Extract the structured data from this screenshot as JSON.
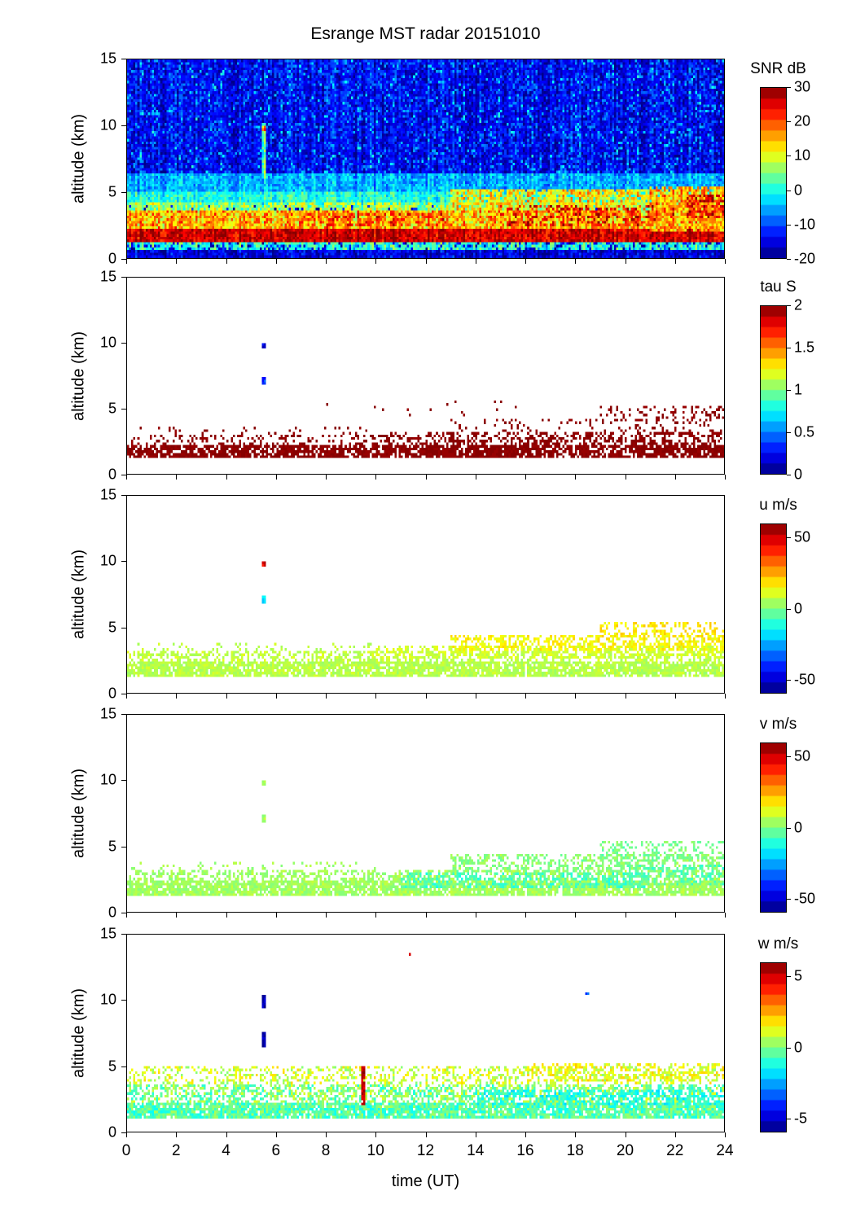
{
  "title": "Esrange MST radar 20151010",
  "axes": {
    "xlabel": "time (UT)",
    "ylabel": "altitude (km)",
    "x_range": [
      0,
      24
    ],
    "y_range": [
      0,
      15
    ],
    "x_ticks": [
      0,
      2,
      4,
      6,
      8,
      10,
      12,
      14,
      16,
      18,
      20,
      22,
      24
    ],
    "y_ticks": [
      0,
      5,
      10,
      15
    ]
  },
  "colors": {
    "background": "#ffffff",
    "axis": "#000000",
    "colormap": "jet"
  },
  "chart_data": [
    {
      "id": "snr",
      "type": "heatmap",
      "colorbar_label": "SNR dB",
      "vmin": -20,
      "vmax": 30,
      "colorbar_ticks": [
        30,
        20,
        10,
        0,
        -10,
        -20
      ],
      "background": "field",
      "column_noise": 3,
      "regions": [
        {
          "x": [
            0,
            24
          ],
          "y": [
            0,
            15
          ],
          "v": [
            -19,
            -11
          ],
          "density": 1
        },
        {
          "x": [
            0,
            24
          ],
          "y": [
            5.5,
            15
          ],
          "v": [
            -16,
            -6
          ],
          "density": 0.3
        },
        {
          "x": [
            0,
            24
          ],
          "y": [
            6,
            15
          ],
          "v": [
            -7,
            -1
          ],
          "density": 0.05
        },
        {
          "x": [
            0,
            24
          ],
          "y": [
            5,
            6.3
          ],
          "v": [
            -9,
            -1
          ],
          "density": 1
        },
        {
          "x": [
            0,
            24
          ],
          "y": [
            4,
            5
          ],
          "v": [
            -4,
            4
          ],
          "density": 1
        },
        {
          "x": [
            0,
            24
          ],
          "y": [
            3.4,
            4.2
          ],
          "v": [
            0,
            12
          ],
          "density": 0.9
        },
        {
          "x": [
            0,
            24
          ],
          "y": [
            2.2,
            3.5
          ],
          "v": [
            8,
            22
          ],
          "density": 1
        },
        {
          "x": [
            0,
            24
          ],
          "y": [
            1.2,
            2.2
          ],
          "v": [
            22,
            30
          ],
          "density": 1
        },
        {
          "x": [
            0,
            24
          ],
          "y": [
            0.6,
            1.1
          ],
          "v": [
            -6,
            6
          ],
          "density": 0.8
        },
        {
          "x": [
            7,
            13
          ],
          "y": [
            2.4,
            3.4
          ],
          "v": [
            14,
            26
          ],
          "density": 0.5
        },
        {
          "x": [
            13,
            24
          ],
          "y": [
            3.5,
            5.2
          ],
          "v": [
            5,
            18
          ],
          "density": 0.85
        },
        {
          "x": [
            15,
            22
          ],
          "y": [
            2.3,
            4
          ],
          "v": [
            20,
            30
          ],
          "density": 0.35
        },
        {
          "x": [
            21,
            24
          ],
          "y": [
            2,
            5.5
          ],
          "v": [
            10,
            22
          ],
          "density": 0.8
        },
        {
          "x": [
            22.5,
            24
          ],
          "y": [
            3,
            4.8
          ],
          "v": [
            22,
            30
          ],
          "density": 0.5
        },
        {
          "x": [
            5.42,
            5.58
          ],
          "y": [
            6,
            10.2
          ],
          "v": [
            -2,
            8
          ],
          "density": 1
        },
        {
          "x": [
            5.42,
            5.58
          ],
          "y": [
            9.7,
            10.05
          ],
          "v": [
            12,
            22
          ],
          "density": 1
        }
      ]
    },
    {
      "id": "tau",
      "type": "heatmap",
      "colorbar_label": "tau S",
      "vmin": 0,
      "vmax": 2,
      "colorbar_ticks": [
        2,
        1.5,
        1,
        0.5,
        0
      ],
      "background": "white",
      "regions": [
        {
          "x": [
            0,
            24
          ],
          "y": [
            1.2,
            2.2
          ],
          "v": [
            1.95,
            2
          ],
          "density": 0.8
        },
        {
          "x": [
            0,
            24
          ],
          "y": [
            2.2,
            3.0
          ],
          "v": [
            1.95,
            2
          ],
          "density": 0.25
        },
        {
          "x": [
            10,
            24
          ],
          "y": [
            2.2,
            3.2
          ],
          "v": [
            1.95,
            2
          ],
          "density": 0.3
        },
        {
          "x": [
            13,
            24
          ],
          "y": [
            3.0,
            4.2
          ],
          "v": [
            1.95,
            2
          ],
          "density": 0.15
        },
        {
          "x": [
            19,
            24
          ],
          "y": [
            4.0,
            5.2
          ],
          "v": [
            1.95,
            2
          ],
          "density": 0.25
        },
        {
          "x": [
            0,
            10
          ],
          "y": [
            2.8,
            3.6
          ],
          "v": [
            1.95,
            2
          ],
          "density": 0.08
        },
        {
          "x": [
            8,
            16
          ],
          "y": [
            4.3,
            5.6
          ],
          "v": [
            1.95,
            2
          ],
          "density": 0.03
        },
        {
          "x": [
            5.4,
            5.6
          ],
          "y": [
            9.6,
            10.0
          ],
          "v": [
            0.1,
            0.3
          ],
          "density": 1
        },
        {
          "x": [
            5.4,
            5.6
          ],
          "y": [
            6.8,
            7.4
          ],
          "v": [
            0.2,
            0.5
          ],
          "density": 1
        }
      ]
    },
    {
      "id": "u",
      "type": "heatmap",
      "colorbar_label": "u m/s",
      "vmin": -60,
      "vmax": 60,
      "colorbar_ticks": [
        50,
        0,
        -50
      ],
      "background": "white",
      "regions": [
        {
          "x": [
            0,
            24
          ],
          "y": [
            1.2,
            2.3
          ],
          "v": [
            3,
            10
          ],
          "density": 0.85
        },
        {
          "x": [
            0,
            24
          ],
          "y": [
            2.3,
            3.2
          ],
          "v": [
            4,
            12
          ],
          "density": 0.4
        },
        {
          "x": [
            10,
            24
          ],
          "y": [
            2.5,
            3.6
          ],
          "v": [
            6,
            14
          ],
          "density": 0.45
        },
        {
          "x": [
            13,
            24
          ],
          "y": [
            3.2,
            4.4
          ],
          "v": [
            10,
            20
          ],
          "density": 0.5
        },
        {
          "x": [
            19,
            24
          ],
          "y": [
            4.2,
            5.3
          ],
          "v": [
            12,
            22
          ],
          "density": 0.4
        },
        {
          "x": [
            0,
            10
          ],
          "y": [
            2.8,
            3.8
          ],
          "v": [
            4,
            10
          ],
          "density": 0.12
        },
        {
          "x": [
            5.4,
            5.6
          ],
          "y": [
            9.6,
            10.0
          ],
          "v": [
            40,
            55
          ],
          "density": 1
        },
        {
          "x": [
            5.4,
            5.6
          ],
          "y": [
            6.8,
            7.4
          ],
          "v": [
            -25,
            -12
          ],
          "density": 1
        }
      ]
    },
    {
      "id": "v",
      "type": "heatmap",
      "colorbar_label": "v m/s",
      "vmin": -60,
      "vmax": 60,
      "colorbar_ticks": [
        50,
        0,
        -50
      ],
      "background": "white",
      "regions": [
        {
          "x": [
            0,
            24
          ],
          "y": [
            1.2,
            2.3
          ],
          "v": [
            0,
            8
          ],
          "density": 0.85
        },
        {
          "x": [
            0,
            24
          ],
          "y": [
            2.3,
            3.2
          ],
          "v": [
            0,
            8
          ],
          "density": 0.4
        },
        {
          "x": [
            11,
            21
          ],
          "y": [
            1.8,
            3.0
          ],
          "v": [
            -12,
            -2
          ],
          "density": 0.5
        },
        {
          "x": [
            13,
            24
          ],
          "y": [
            3.0,
            4.4
          ],
          "v": [
            -4,
            6
          ],
          "density": 0.45
        },
        {
          "x": [
            19,
            24
          ],
          "y": [
            4.0,
            5.3
          ],
          "v": [
            -6,
            4
          ],
          "density": 0.35
        },
        {
          "x": [
            20,
            24
          ],
          "y": [
            2.0,
            3.5
          ],
          "v": [
            -10,
            0
          ],
          "density": 0.4
        },
        {
          "x": [
            0,
            10
          ],
          "y": [
            2.8,
            3.8
          ],
          "v": [
            0,
            8
          ],
          "density": 0.12
        },
        {
          "x": [
            5.4,
            5.6
          ],
          "y": [
            9.6,
            10.0
          ],
          "v": [
            0,
            8
          ],
          "density": 1
        },
        {
          "x": [
            5.4,
            5.6
          ],
          "y": [
            6.8,
            7.4
          ],
          "v": [
            0,
            8
          ],
          "density": 1
        }
      ]
    },
    {
      "id": "w",
      "type": "heatmap",
      "colorbar_label": "w m/s",
      "vmin": -6,
      "vmax": 6,
      "colorbar_ticks": [
        5,
        0,
        -5
      ],
      "background": "white",
      "regions": [
        {
          "x": [
            0,
            24
          ],
          "y": [
            1.0,
            2.2
          ],
          "v": [
            -1.5,
            0.5
          ],
          "density": 0.9
        },
        {
          "x": [
            0,
            24
          ],
          "y": [
            2.2,
            3.6
          ],
          "v": [
            -1.2,
            1.2
          ],
          "density": 0.55
        },
        {
          "x": [
            0,
            24
          ],
          "y": [
            3.6,
            5.0
          ],
          "v": [
            0,
            2
          ],
          "density": 0.35
        },
        {
          "x": [
            14,
            24
          ],
          "y": [
            2.0,
            3.2
          ],
          "v": [
            -2,
            -0.5
          ],
          "density": 0.5
        },
        {
          "x": [
            16,
            24
          ],
          "y": [
            3.8,
            5.2
          ],
          "v": [
            0.5,
            2.2
          ],
          "density": 0.4
        },
        {
          "x": [
            5.4,
            5.6
          ],
          "y": [
            6.3,
            7.6
          ],
          "v": [
            -6,
            -5
          ],
          "density": 1
        },
        {
          "x": [
            5.4,
            5.6
          ],
          "y": [
            9.4,
            10.3
          ],
          "v": [
            -6,
            -5
          ],
          "density": 1
        },
        {
          "x": [
            9.45,
            9.6
          ],
          "y": [
            2.0,
            5.0
          ],
          "v": [
            4.5,
            6
          ],
          "density": 0.85
        },
        {
          "x": [
            11.3,
            11.45
          ],
          "y": [
            13.3,
            13.6
          ],
          "v": [
            4,
            5.5
          ],
          "density": 1
        },
        {
          "x": [
            18.4,
            18.55
          ],
          "y": [
            10.3,
            10.6
          ],
          "v": [
            -4,
            -3
          ],
          "density": 1
        }
      ]
    }
  ]
}
